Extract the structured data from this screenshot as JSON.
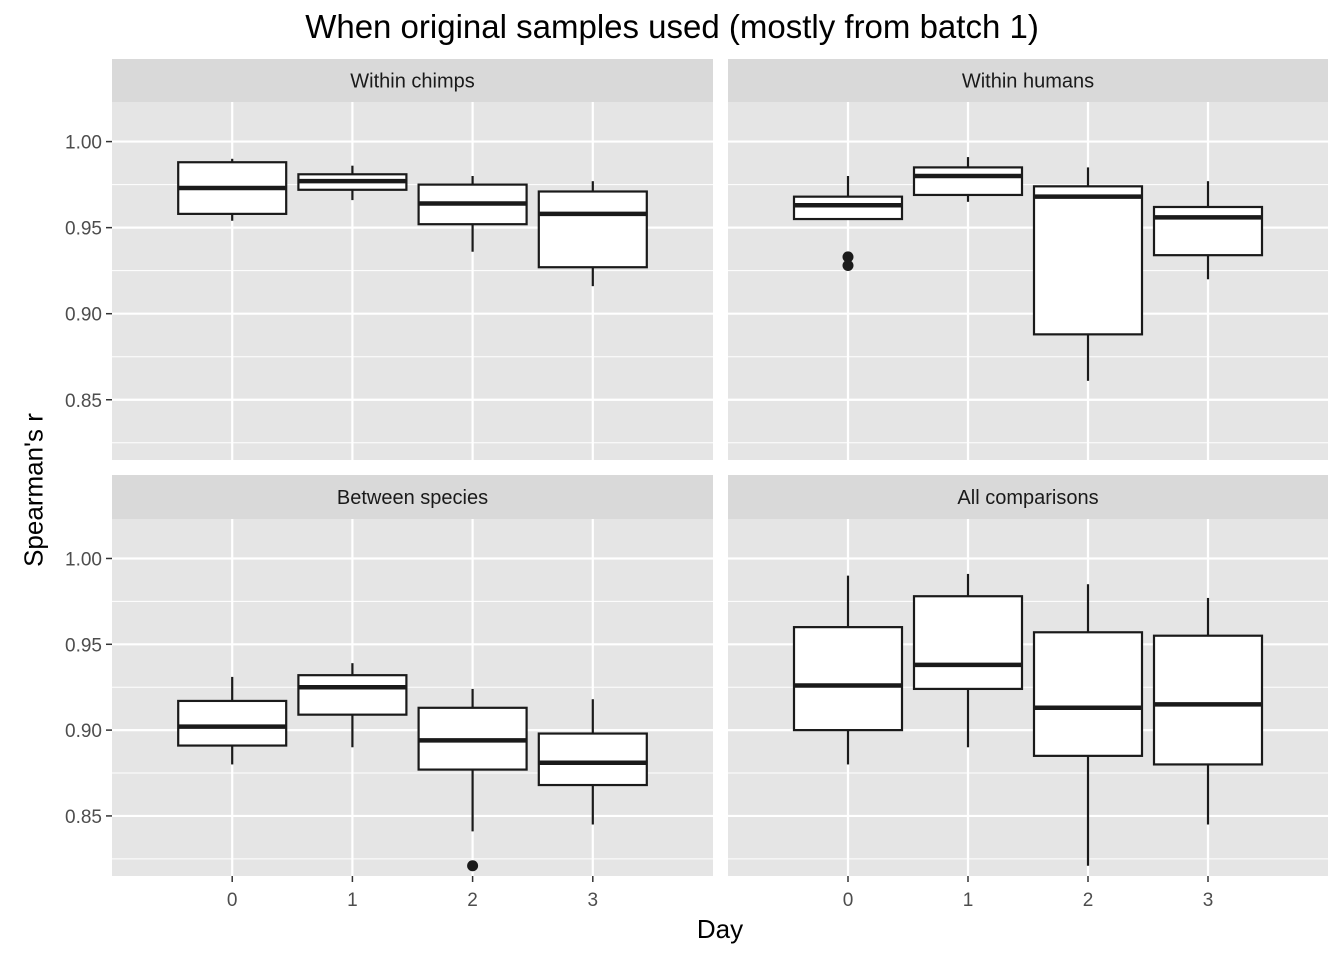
{
  "chart_data": {
    "type": "boxplot",
    "title": "When original samples used (mostly from batch 1)",
    "xlabel": "Day",
    "ylabel": "Spearman's r",
    "categories": [
      "0",
      "1",
      "2",
      "3"
    ],
    "ylim": [
      0.815,
      1.023
    ],
    "yticks": [
      0.85,
      0.9,
      0.95,
      1.0
    ],
    "ytick_labels": [
      "0.85",
      "0.90",
      "0.95",
      "1.00"
    ],
    "grid": true,
    "panels": [
      {
        "name": "Within chimps",
        "boxes": [
          {
            "category": "0",
            "whisker_low": 0.954,
            "q1": 0.958,
            "median": 0.973,
            "q3": 0.988,
            "whisker_high": 0.99,
            "outliers": []
          },
          {
            "category": "1",
            "whisker_low": 0.966,
            "q1": 0.972,
            "median": 0.977,
            "q3": 0.981,
            "whisker_high": 0.986,
            "outliers": []
          },
          {
            "category": "2",
            "whisker_low": 0.936,
            "q1": 0.952,
            "median": 0.964,
            "q3": 0.975,
            "whisker_high": 0.98,
            "outliers": []
          },
          {
            "category": "3",
            "whisker_low": 0.916,
            "q1": 0.927,
            "median": 0.958,
            "q3": 0.971,
            "whisker_high": 0.977,
            "outliers": []
          }
        ]
      },
      {
        "name": "Within humans",
        "boxes": [
          {
            "category": "0",
            "whisker_low": 0.955,
            "q1": 0.955,
            "median": 0.963,
            "q3": 0.968,
            "whisker_high": 0.98,
            "outliers": [
              0.933,
              0.928
            ]
          },
          {
            "category": "1",
            "whisker_low": 0.965,
            "q1": 0.969,
            "median": 0.98,
            "q3": 0.985,
            "whisker_high": 0.991,
            "outliers": []
          },
          {
            "category": "2",
            "whisker_low": 0.861,
            "q1": 0.888,
            "median": 0.968,
            "q3": 0.974,
            "whisker_high": 0.985,
            "outliers": []
          },
          {
            "category": "3",
            "whisker_low": 0.92,
            "q1": 0.934,
            "median": 0.956,
            "q3": 0.962,
            "whisker_high": 0.977,
            "outliers": []
          }
        ]
      },
      {
        "name": "Between species",
        "boxes": [
          {
            "category": "0",
            "whisker_low": 0.88,
            "q1": 0.891,
            "median": 0.902,
            "q3": 0.917,
            "whisker_high": 0.931,
            "outliers": []
          },
          {
            "category": "1",
            "whisker_low": 0.89,
            "q1": 0.909,
            "median": 0.925,
            "q3": 0.932,
            "whisker_high": 0.939,
            "outliers": []
          },
          {
            "category": "2",
            "whisker_low": 0.841,
            "q1": 0.877,
            "median": 0.894,
            "q3": 0.913,
            "whisker_high": 0.924,
            "outliers": [
              0.821
            ]
          },
          {
            "category": "3",
            "whisker_low": 0.845,
            "q1": 0.868,
            "median": 0.881,
            "q3": 0.898,
            "whisker_high": 0.918,
            "outliers": []
          }
        ]
      },
      {
        "name": "All comparisons",
        "boxes": [
          {
            "category": "0",
            "whisker_low": 0.88,
            "q1": 0.9,
            "median": 0.926,
            "q3": 0.96,
            "whisker_high": 0.99,
            "outliers": []
          },
          {
            "category": "1",
            "whisker_low": 0.89,
            "q1": 0.924,
            "median": 0.938,
            "q3": 0.978,
            "whisker_high": 0.991,
            "outliers": []
          },
          {
            "category": "2",
            "whisker_low": 0.821,
            "q1": 0.885,
            "median": 0.913,
            "q3": 0.957,
            "whisker_high": 0.985,
            "outliers": []
          },
          {
            "category": "3",
            "whisker_low": 0.845,
            "q1": 0.88,
            "median": 0.915,
            "q3": 0.955,
            "whisker_high": 0.977,
            "outliers": []
          }
        ]
      }
    ],
    "colors": {
      "panel_background": "#e5e5e5",
      "grid": "#ffffff",
      "strip_background": "#d9d9d9",
      "box_fill": "#ffffff",
      "box_stroke": "#1a1a1a"
    }
  }
}
